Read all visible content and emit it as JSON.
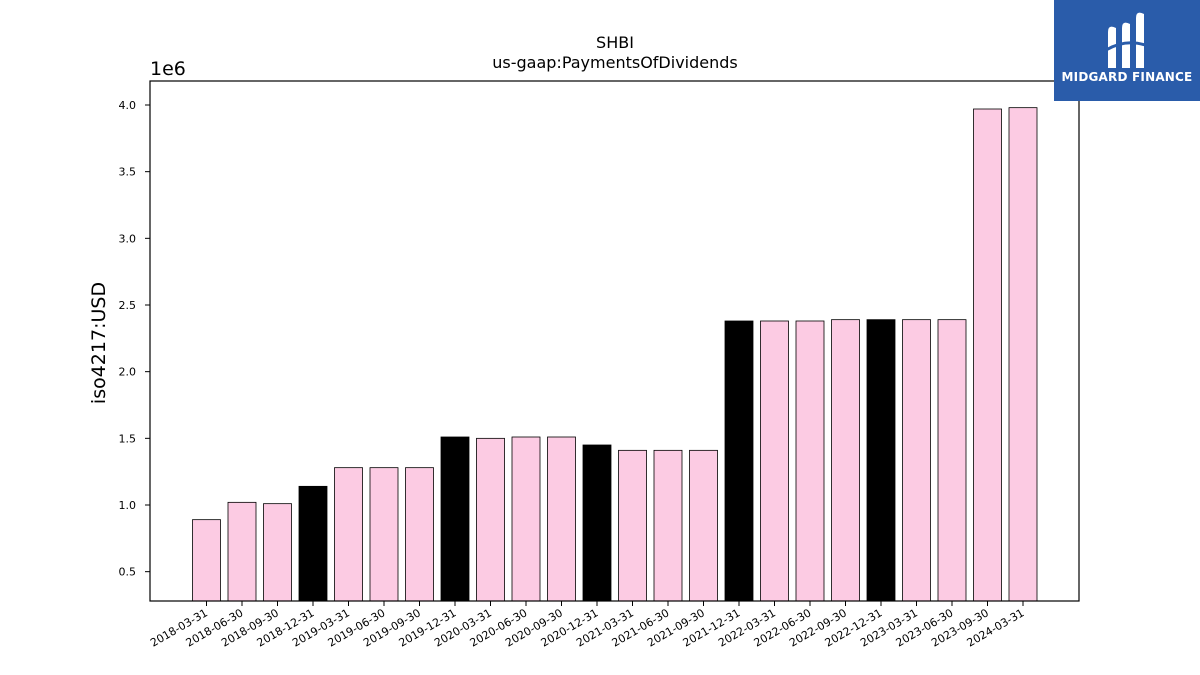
{
  "colors": {
    "background": "#ffffff",
    "bar_default": "#fccbe3",
    "bar_highlight": "#000000",
    "bar_edge": "#000000",
    "brand": "#2a5caa",
    "brand_text": "#ffffff"
  },
  "brand": {
    "name": "MIDGARD FINANCE",
    "icon": "midgard-logo-icon"
  },
  "chart_data": {
    "type": "bar",
    "title": "SHBI",
    "subtitle": "us-gaap:PaymentsOfDividends",
    "xlabel": "",
    "ylabel": "iso4217:USD",
    "y_multiplier_label": "1e6",
    "ylim": [
      0.28,
      4.18
    ],
    "yticks": [
      0.5,
      1.0,
      1.5,
      2.0,
      2.5,
      3.0,
      3.5,
      4.0
    ],
    "ytick_labels": [
      "0.5",
      "1.0",
      "1.5",
      "2.0",
      "2.5",
      "3.0",
      "3.5",
      "4.0"
    ],
    "grid": false,
    "categories": [
      "2018-03-31",
      "2018-06-30",
      "2018-09-30",
      "2018-12-31",
      "2019-03-31",
      "2019-06-30",
      "2019-09-30",
      "2019-12-31",
      "2020-03-31",
      "2020-06-30",
      "2020-09-30",
      "2020-12-31",
      "2021-03-31",
      "2021-06-30",
      "2021-09-30",
      "2021-12-31",
      "2022-03-31",
      "2022-06-30",
      "2022-09-30",
      "2022-12-31",
      "2023-03-31",
      "2023-06-30",
      "2023-09-30",
      "2024-03-31"
    ],
    "values": [
      0.89,
      1.02,
      1.01,
      1.14,
      1.28,
      1.28,
      1.28,
      1.51,
      1.5,
      1.51,
      1.51,
      1.45,
      1.41,
      1.41,
      1.41,
      2.38,
      2.38,
      2.38,
      2.39,
      2.39,
      2.39,
      2.39,
      3.97,
      3.98
    ],
    "highlighted": [
      false,
      false,
      false,
      true,
      false,
      false,
      false,
      true,
      false,
      false,
      false,
      true,
      false,
      false,
      false,
      true,
      false,
      false,
      false,
      true,
      false,
      false,
      false,
      false
    ]
  }
}
